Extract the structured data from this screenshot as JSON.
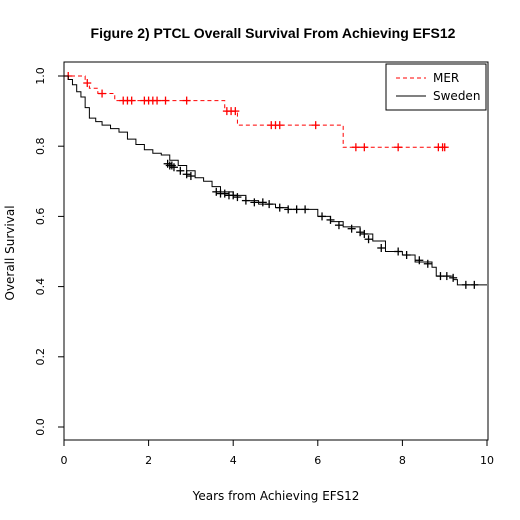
{
  "chart_data": {
    "type": "line",
    "subtype": "kaplan-meier",
    "title": "Figure 2) PTCL Overall Survival From Achieving EFS12",
    "xlabel": "Years from Achieving EFS12",
    "ylabel": "Overall Survival",
    "xlim": [
      0,
      10
    ],
    "ylim": [
      0,
      1
    ],
    "xticks": [
      "0",
      "2",
      "4",
      "6",
      "8",
      "10"
    ],
    "yticks": [
      "0.0",
      "0.2",
      "0.4",
      "0.6",
      "0.8",
      "1.0"
    ],
    "legend": {
      "position": "top-right"
    },
    "grid": false,
    "series": [
      {
        "name": "MER",
        "color": "#ff0000",
        "dash": true,
        "steps": [
          [
            0,
            1.0
          ],
          [
            0.5,
            0.98
          ],
          [
            0.6,
            0.965
          ],
          [
            0.8,
            0.95
          ],
          [
            1.2,
            0.93
          ],
          [
            3.8,
            0.9
          ],
          [
            4.1,
            0.86
          ],
          [
            6.6,
            0.797
          ],
          [
            9.05,
            0.797
          ]
        ],
        "censored": [
          [
            0.1,
            1.0
          ],
          [
            0.55,
            0.98
          ],
          [
            0.9,
            0.95
          ],
          [
            1.4,
            0.93
          ],
          [
            1.5,
            0.93
          ],
          [
            1.6,
            0.93
          ],
          [
            1.9,
            0.93
          ],
          [
            2.0,
            0.93
          ],
          [
            2.1,
            0.93
          ],
          [
            2.2,
            0.93
          ],
          [
            2.4,
            0.93
          ],
          [
            2.9,
            0.93
          ],
          [
            3.85,
            0.9
          ],
          [
            3.95,
            0.9
          ],
          [
            4.05,
            0.9
          ],
          [
            4.9,
            0.86
          ],
          [
            5.0,
            0.86
          ],
          [
            5.1,
            0.86
          ],
          [
            5.95,
            0.86
          ],
          [
            6.9,
            0.797
          ],
          [
            7.1,
            0.797
          ],
          [
            7.9,
            0.797
          ],
          [
            8.85,
            0.797
          ],
          [
            8.95,
            0.797
          ],
          [
            9.0,
            0.797
          ]
        ]
      },
      {
        "name": "Sweden",
        "color": "#000000",
        "dash": false,
        "steps": [
          [
            0,
            1.0
          ],
          [
            0.1,
            0.99
          ],
          [
            0.2,
            0.975
          ],
          [
            0.3,
            0.955
          ],
          [
            0.4,
            0.94
          ],
          [
            0.5,
            0.91
          ],
          [
            0.6,
            0.88
          ],
          [
            0.75,
            0.87
          ],
          [
            0.9,
            0.86
          ],
          [
            1.1,
            0.85
          ],
          [
            1.3,
            0.84
          ],
          [
            1.5,
            0.82
          ],
          [
            1.7,
            0.805
          ],
          [
            1.9,
            0.79
          ],
          [
            2.1,
            0.78
          ],
          [
            2.3,
            0.775
          ],
          [
            2.5,
            0.76
          ],
          [
            2.7,
            0.745
          ],
          [
            2.9,
            0.73
          ],
          [
            3.1,
            0.71
          ],
          [
            3.3,
            0.7
          ],
          [
            3.5,
            0.685
          ],
          [
            3.7,
            0.67
          ],
          [
            4.0,
            0.66
          ],
          [
            4.3,
            0.645
          ],
          [
            4.6,
            0.635
          ],
          [
            5.0,
            0.625
          ],
          [
            5.3,
            0.62
          ],
          [
            5.8,
            0.62
          ],
          [
            6.0,
            0.6
          ],
          [
            6.3,
            0.585
          ],
          [
            6.6,
            0.57
          ],
          [
            7.0,
            0.55
          ],
          [
            7.3,
            0.53
          ],
          [
            7.6,
            0.5
          ],
          [
            8.0,
            0.49
          ],
          [
            8.3,
            0.47
          ],
          [
            8.7,
            0.455
          ],
          [
            8.8,
            0.43
          ],
          [
            9.2,
            0.42
          ],
          [
            9.3,
            0.405
          ],
          [
            10.0,
            0.405
          ]
        ],
        "censored": [
          [
            2.45,
            0.75
          ],
          [
            2.5,
            0.745
          ],
          [
            2.55,
            0.745
          ],
          [
            2.6,
            0.74
          ],
          [
            2.75,
            0.73
          ],
          [
            2.9,
            0.72
          ],
          [
            3.0,
            0.715
          ],
          [
            3.6,
            0.67
          ],
          [
            3.7,
            0.665
          ],
          [
            3.8,
            0.665
          ],
          [
            3.9,
            0.66
          ],
          [
            4.0,
            0.66
          ],
          [
            4.1,
            0.655
          ],
          [
            4.3,
            0.645
          ],
          [
            4.5,
            0.64
          ],
          [
            4.7,
            0.64
          ],
          [
            4.85,
            0.635
          ],
          [
            5.1,
            0.625
          ],
          [
            5.3,
            0.62
          ],
          [
            5.5,
            0.62
          ],
          [
            5.7,
            0.62
          ],
          [
            6.1,
            0.6
          ],
          [
            6.3,
            0.59
          ],
          [
            6.5,
            0.575
          ],
          [
            6.8,
            0.565
          ],
          [
            7.0,
            0.555
          ],
          [
            7.1,
            0.55
          ],
          [
            7.2,
            0.535
          ],
          [
            7.5,
            0.51
          ],
          [
            7.9,
            0.5
          ],
          [
            8.1,
            0.49
          ],
          [
            8.4,
            0.475
          ],
          [
            8.6,
            0.465
          ],
          [
            8.9,
            0.43
          ],
          [
            9.05,
            0.43
          ],
          [
            9.2,
            0.425
          ],
          [
            9.5,
            0.405
          ],
          [
            9.7,
            0.405
          ]
        ]
      }
    ]
  }
}
